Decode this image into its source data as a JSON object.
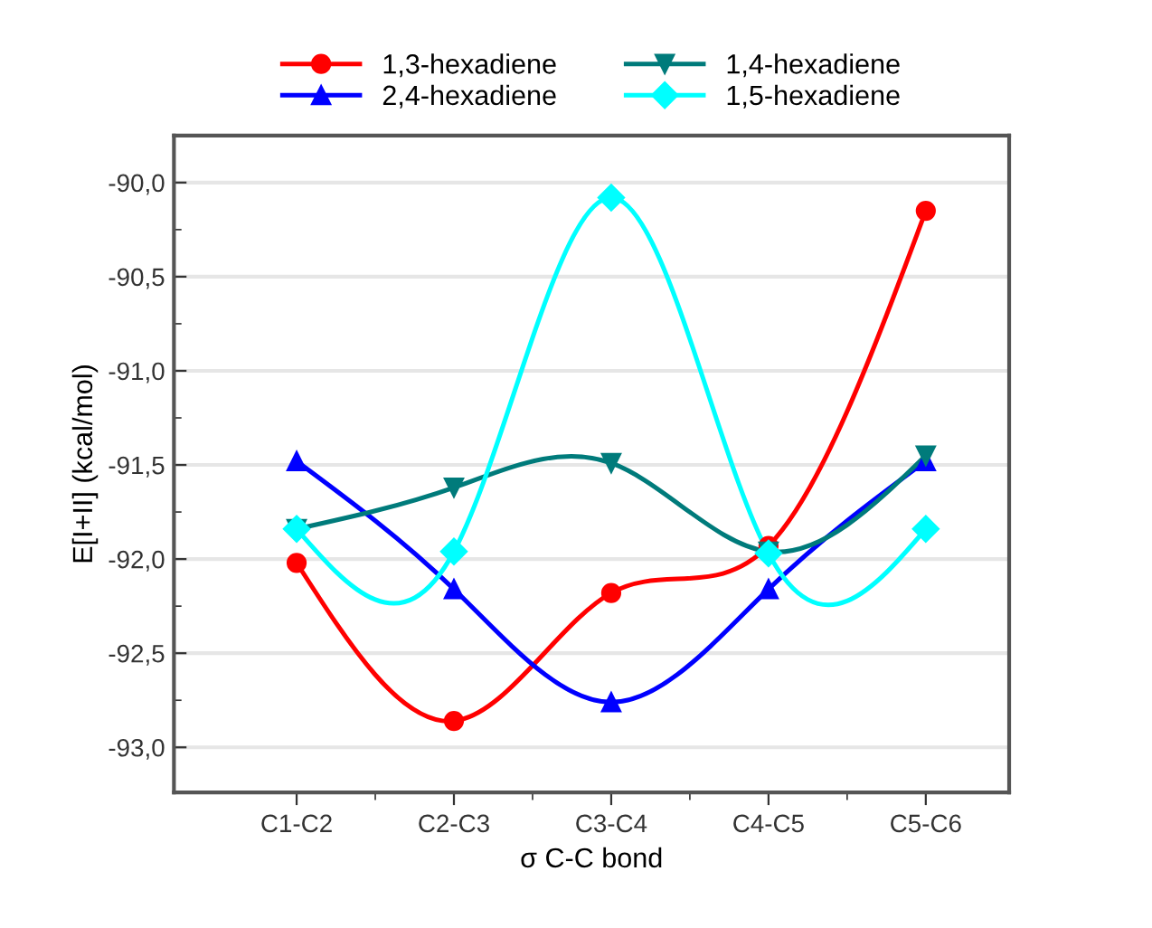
{
  "chart_data": {
    "type": "line",
    "categories": [
      "C1-C2",
      "C2-C3",
      "C3-C4",
      "C4-C5",
      "C5-C6"
    ],
    "xlabel": "σ C-C bond",
    "ylabel": "E[I+II] (kcal/mol)",
    "ylim": [
      -93.24,
      -89.75
    ],
    "yticks": [
      {
        "value": -93.0,
        "label": "-93,0"
      },
      {
        "value": -92.5,
        "label": "-92,5"
      },
      {
        "value": -92.0,
        "label": "-92,0"
      },
      {
        "value": -91.5,
        "label": "-91,5"
      },
      {
        "value": -91.0,
        "label": "-91,0"
      },
      {
        "value": -90.5,
        "label": "-90,5"
      },
      {
        "value": -90.0,
        "label": "-90,0"
      }
    ],
    "grid": "y",
    "legend": "top",
    "series": [
      {
        "name": "1,3-hexadiene",
        "color": "#ff0000",
        "marker": "circle",
        "values": [
          -92.02,
          -92.86,
          -92.18,
          -91.93,
          -90.15
        ]
      },
      {
        "name": "2,4-hexadiene",
        "color": "#0000ff",
        "marker": "triangle",
        "values": [
          -91.48,
          -92.16,
          -92.76,
          -92.16,
          -91.48
        ]
      },
      {
        "name": "1,4-hexadiene",
        "color": "#007b7b",
        "marker": "triangle_down",
        "values": [
          -91.84,
          -91.62,
          -91.49,
          -91.96,
          -91.45
        ]
      },
      {
        "name": "1,5-hexadiene",
        "color": "#00ffff",
        "marker": "diamond",
        "values": [
          -91.84,
          -91.96,
          -90.08,
          -91.97,
          -91.84
        ]
      }
    ]
  }
}
